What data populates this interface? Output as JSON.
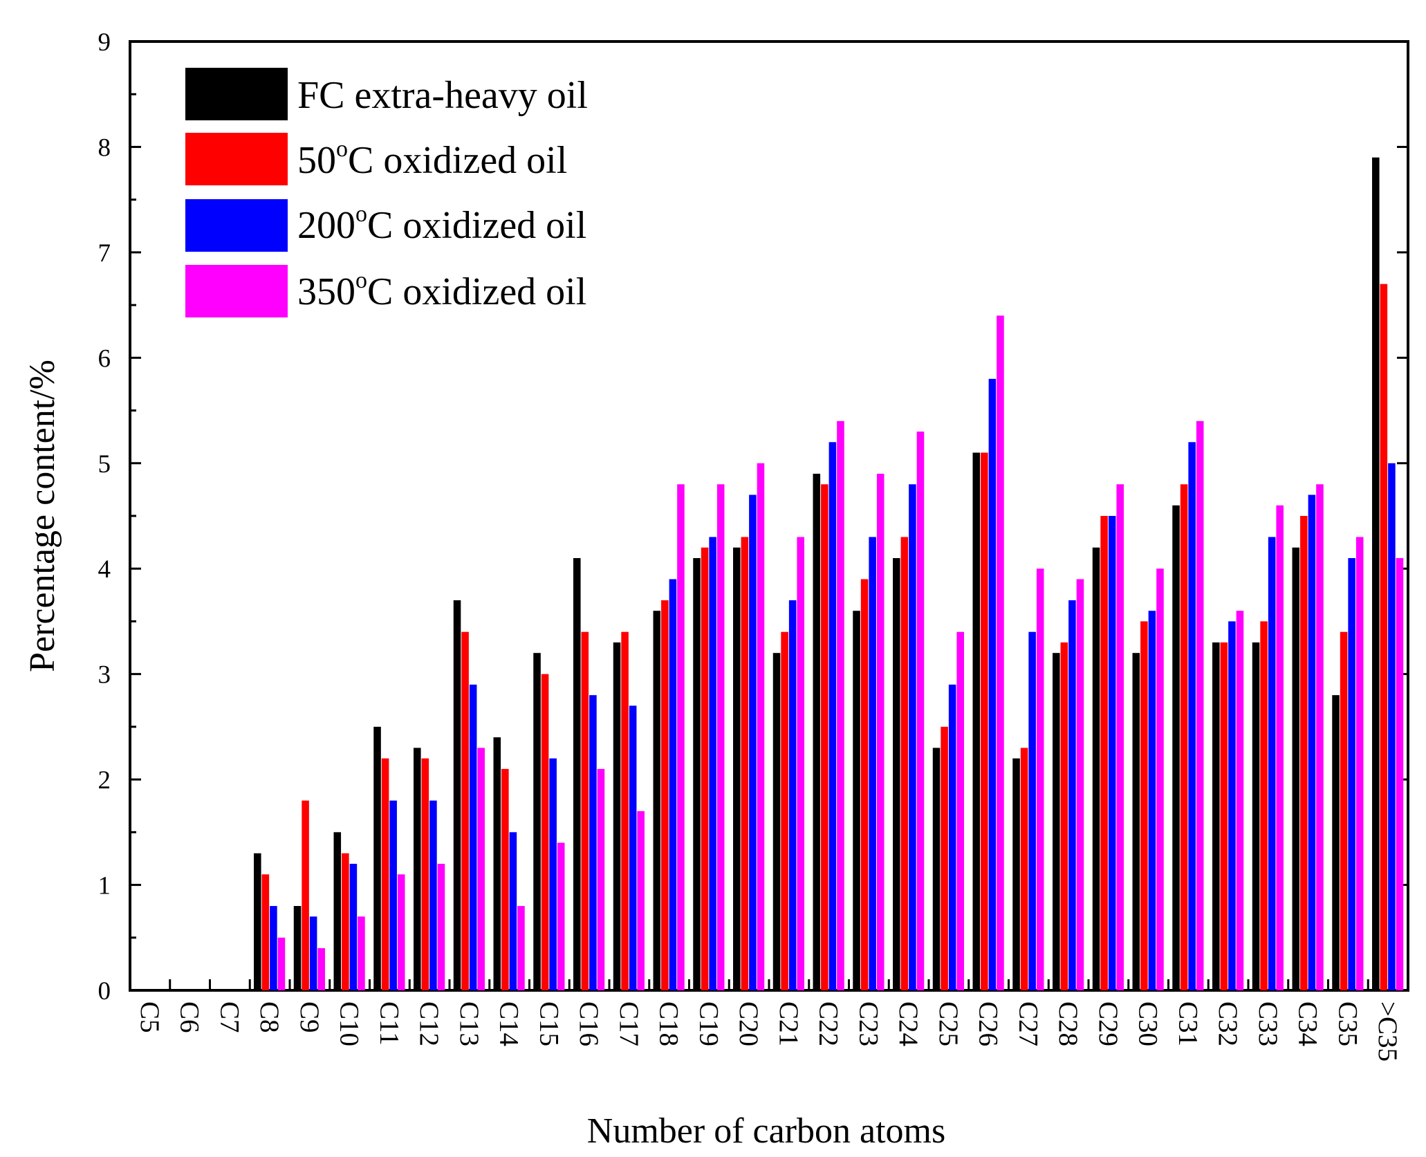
{
  "chart_data": {
    "type": "bar",
    "title": "",
    "xlabel": "Number of carbon atoms",
    "ylabel": "Percentage content/%",
    "ylim": [
      0,
      9
    ],
    "yticks": [
      0,
      1,
      2,
      3,
      4,
      5,
      6,
      7,
      8,
      9
    ],
    "grid": false,
    "legend_position": "top-left",
    "categories": [
      "C5",
      "C6",
      "C7",
      "C8",
      "C9",
      "C10",
      "C11",
      "C12",
      "C13",
      "C14",
      "C15",
      "C16",
      "C17",
      "C18",
      "C19",
      "C20",
      "C21",
      "C22",
      "C23",
      "C24",
      "C25",
      "C26",
      "C27",
      "C28",
      "C29",
      "C30",
      "C31",
      "C32",
      "C33",
      "C34",
      "C35",
      ">C35"
    ],
    "series": [
      {
        "name": "FC extra-heavy oil",
        "color": "#000000",
        "values": [
          0,
          0,
          0,
          1.3,
          0.8,
          1.5,
          2.5,
          2.3,
          3.7,
          2.4,
          3.2,
          4.1,
          3.3,
          3.6,
          4.1,
          4.2,
          3.2,
          4.9,
          3.6,
          4.1,
          2.3,
          5.1,
          2.2,
          3.2,
          4.2,
          3.2,
          4.6,
          3.3,
          3.3,
          4.2,
          2.8,
          7.9
        ]
      },
      {
        "name": "50°C oxidized oil",
        "name_main": "50",
        "name_sup": "o",
        "name_rest": "C oxidized oil",
        "color": "#ff0000",
        "values": [
          0,
          0,
          0,
          1.1,
          1.8,
          1.3,
          2.2,
          2.2,
          3.4,
          2.1,
          3.0,
          3.4,
          3.4,
          3.7,
          4.2,
          4.3,
          3.4,
          4.8,
          3.9,
          4.3,
          2.5,
          5.1,
          2.3,
          3.3,
          4.5,
          3.5,
          4.8,
          3.3,
          3.5,
          4.5,
          3.4,
          6.7
        ]
      },
      {
        "name": "200°C oxidized oil",
        "name_main": "200",
        "name_sup": "o",
        "name_rest": "C oxidized oil",
        "color": "#0000ff",
        "values": [
          0,
          0,
          0,
          0.8,
          0.7,
          1.2,
          1.8,
          1.8,
          2.9,
          1.5,
          2.2,
          2.8,
          2.7,
          3.9,
          4.3,
          4.7,
          3.7,
          5.2,
          4.3,
          4.8,
          2.9,
          5.8,
          3.4,
          3.7,
          4.5,
          3.6,
          5.2,
          3.5,
          4.3,
          4.7,
          4.1,
          5.0
        ]
      },
      {
        "name": "350°C oxidized oil",
        "name_main": "350",
        "name_sup": "o",
        "name_rest": "C oxidized oil",
        "color": "#ff00ff",
        "values": [
          0,
          0,
          0,
          0.5,
          0.4,
          0.7,
          1.1,
          1.2,
          2.3,
          0.8,
          1.4,
          2.1,
          1.7,
          4.8,
          4.8,
          5.0,
          4.3,
          5.4,
          4.9,
          5.3,
          3.4,
          6.4,
          4.0,
          3.9,
          4.8,
          4.0,
          5.4,
          3.6,
          4.6,
          4.8,
          4.3,
          4.1
        ]
      }
    ]
  }
}
